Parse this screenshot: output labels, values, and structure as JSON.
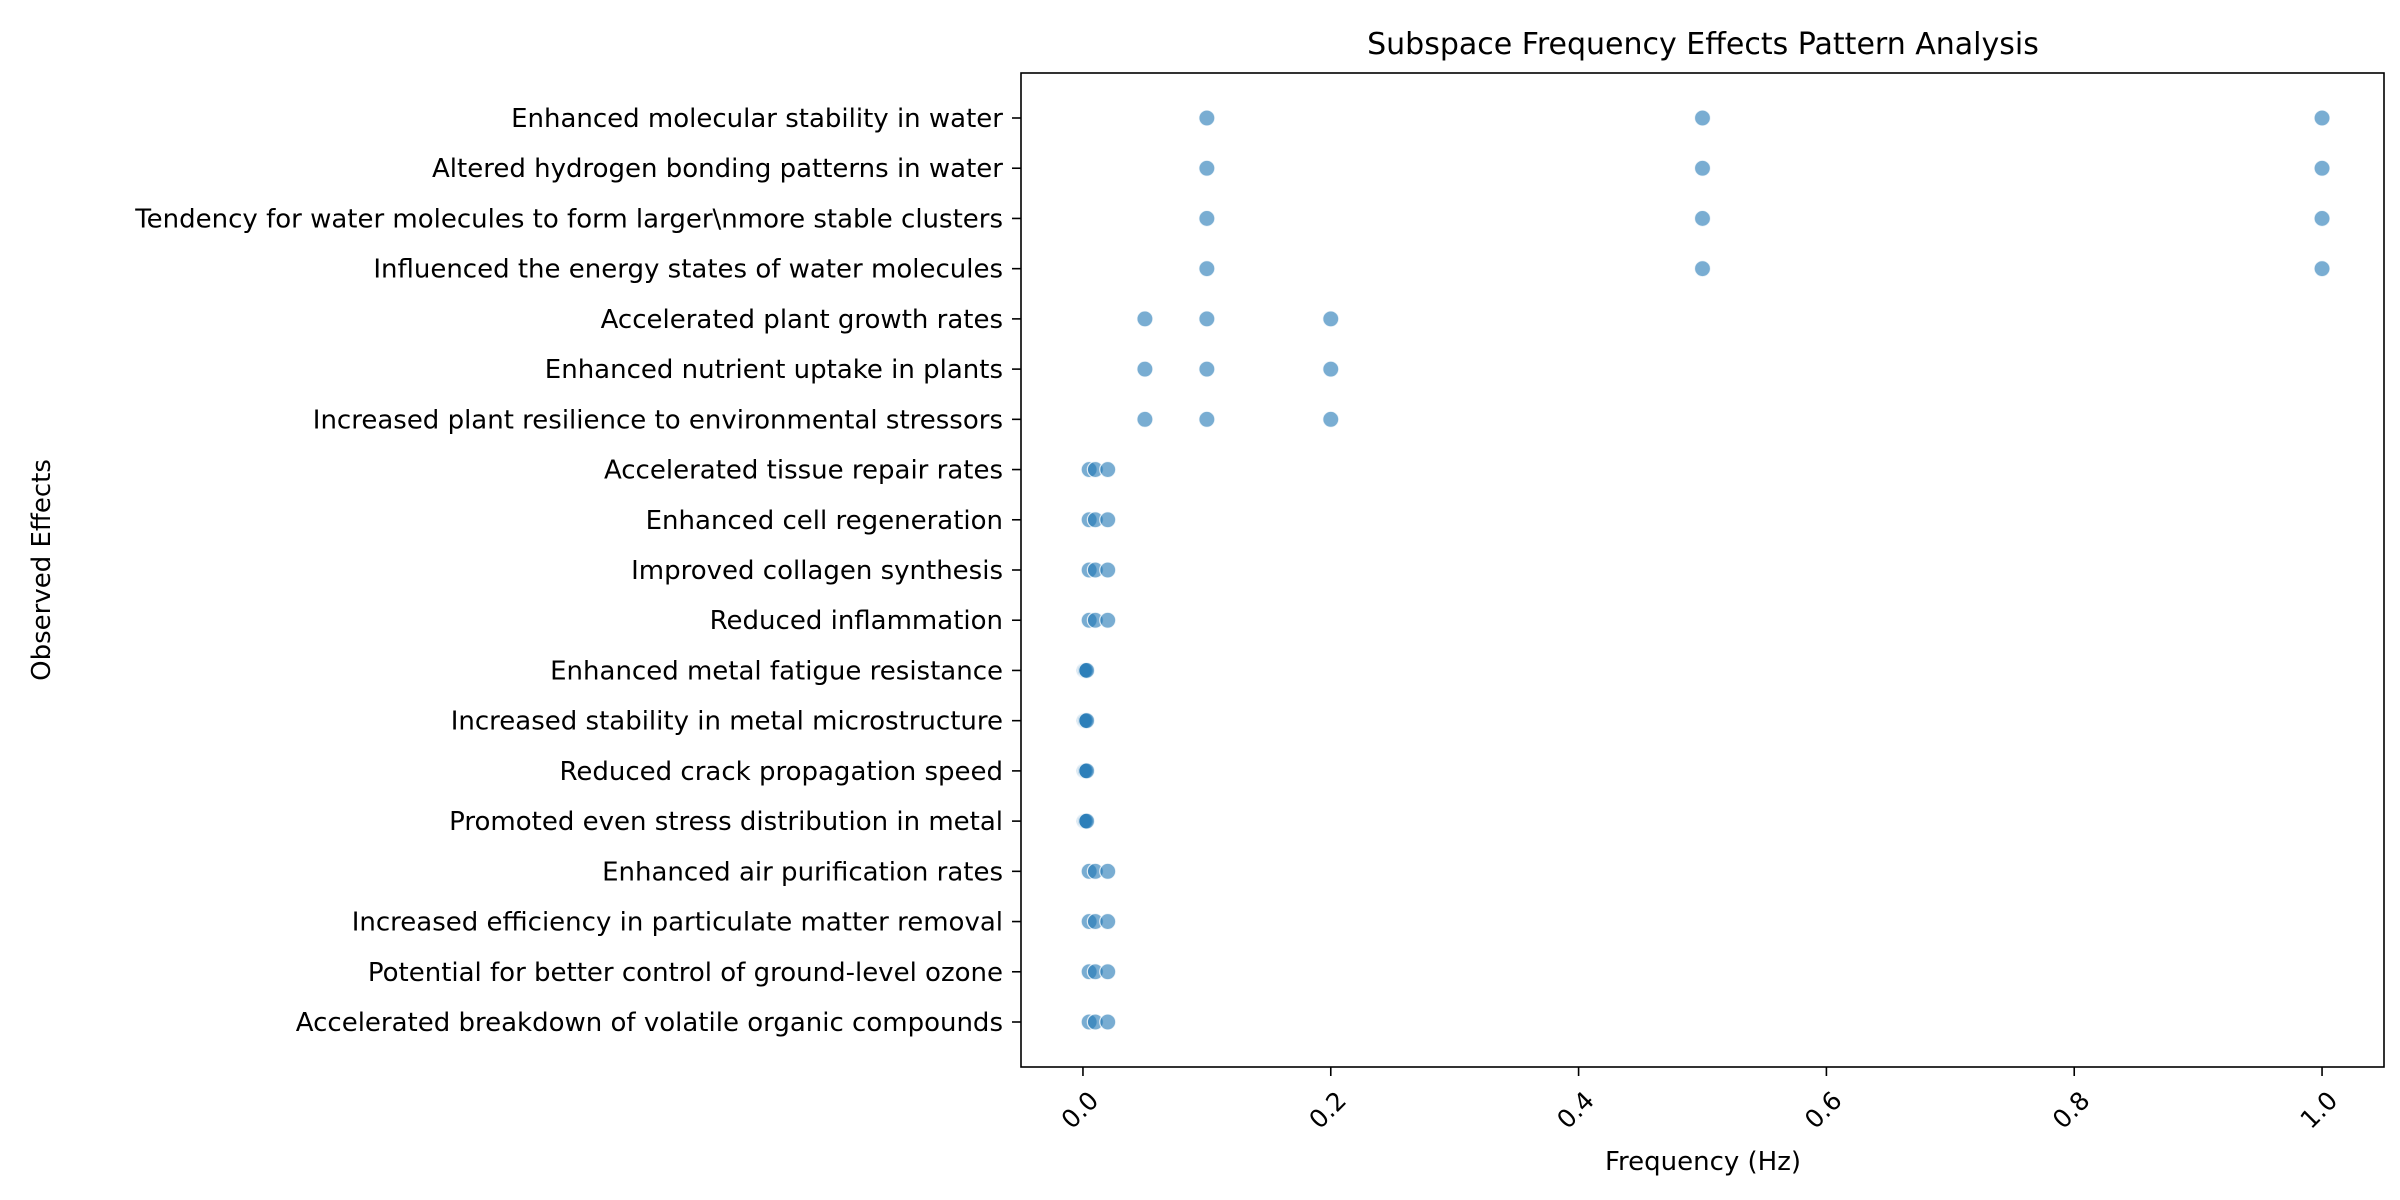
{
  "chart_data": {
    "type": "scatter",
    "title": "Subspace Frequency Effects Pattern Analysis",
    "xlabel": "Frequency (Hz)",
    "ylabel": "Observed Effects",
    "xlim": [
      -0.05,
      1.05
    ],
    "x_ticks": [
      0.0,
      0.2,
      0.4,
      0.6,
      0.8,
      1.0
    ],
    "x_tick_labels": [
      "0.0",
      "0.2",
      "0.4",
      "0.6",
      "0.8",
      "1.0"
    ],
    "grid": false,
    "legend": "none",
    "marker_color": "#1f77b4",
    "categories": [
      "Enhanced molecular stability in water",
      "Altered hydrogen bonding patterns in water",
      "Tendency for water molecules to form larger\\nmore stable clusters",
      "Influenced the energy states of water molecules",
      "Accelerated plant growth rates",
      "Enhanced nutrient uptake in plants",
      "Increased plant resilience to environmental stressors",
      "Accelerated tissue repair rates",
      "Enhanced cell regeneration",
      "Improved collagen synthesis",
      "Reduced inflammation",
      "Enhanced metal fatigue resistance",
      "Increased stability in metal microstructure",
      "Reduced crack propagation speed",
      "Promoted even stress distribution in metal",
      "Enhanced air purification rates",
      "Increased efficiency in particulate matter removal",
      "Potential for better control of ground-level ozone",
      "Accelerated breakdown of volatile organic compounds"
    ],
    "points": [
      {
        "effect": 0,
        "x": [
          0.1,
          0.5,
          1.0
        ]
      },
      {
        "effect": 1,
        "x": [
          0.1,
          0.5,
          1.0
        ]
      },
      {
        "effect": 2,
        "x": [
          0.1,
          0.5,
          1.0
        ]
      },
      {
        "effect": 3,
        "x": [
          0.1,
          0.5,
          1.0
        ]
      },
      {
        "effect": 4,
        "x": [
          0.05,
          0.1,
          0.2
        ]
      },
      {
        "effect": 5,
        "x": [
          0.05,
          0.1,
          0.2
        ]
      },
      {
        "effect": 6,
        "x": [
          0.05,
          0.1,
          0.2
        ]
      },
      {
        "effect": 7,
        "x": [
          0.005,
          0.01,
          0.02
        ]
      },
      {
        "effect": 8,
        "x": [
          0.005,
          0.01,
          0.02
        ]
      },
      {
        "effect": 9,
        "x": [
          0.005,
          0.01,
          0.02
        ]
      },
      {
        "effect": 10,
        "x": [
          0.005,
          0.01,
          0.02
        ]
      },
      {
        "effect": 11,
        "x": [
          0.001,
          0.002,
          0.003
        ]
      },
      {
        "effect": 12,
        "x": [
          0.001,
          0.002,
          0.003
        ]
      },
      {
        "effect": 13,
        "x": [
          0.001,
          0.002,
          0.003
        ]
      },
      {
        "effect": 14,
        "x": [
          0.001,
          0.002,
          0.003
        ]
      },
      {
        "effect": 15,
        "x": [
          0.005,
          0.01,
          0.02
        ]
      },
      {
        "effect": 16,
        "x": [
          0.005,
          0.01,
          0.02
        ]
      },
      {
        "effect": 17,
        "x": [
          0.005,
          0.01,
          0.02
        ]
      },
      {
        "effect": 18,
        "x": [
          0.005,
          0.01,
          0.02
        ]
      }
    ]
  }
}
